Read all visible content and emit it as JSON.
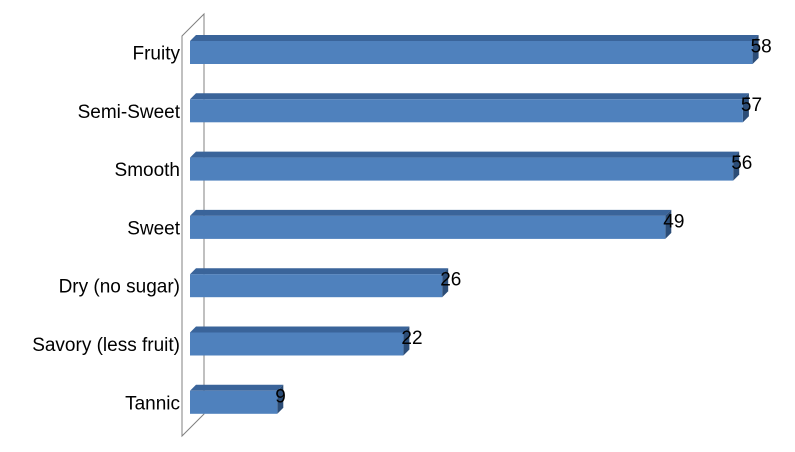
{
  "chart_data": {
    "type": "bar",
    "orientation": "horizontal",
    "style": "3d",
    "categories": [
      "Fruity",
      "Semi-Sweet",
      "Smooth",
      "Sweet",
      "Dry (no sugar)",
      "Savory (less fruit)",
      "Tannic"
    ],
    "values": [
      58,
      57,
      56,
      49,
      26,
      22,
      9
    ],
    "title": "",
    "xlabel": "",
    "ylabel": "",
    "xlim": [
      0,
      58
    ],
    "grid": false,
    "legend": "none",
    "data_labels": true,
    "colors": {
      "bar_front": "#4f81bd",
      "bar_top": "#3a649a",
      "bar_side": "#2c4d77",
      "axis_wall": "#808080"
    }
  }
}
